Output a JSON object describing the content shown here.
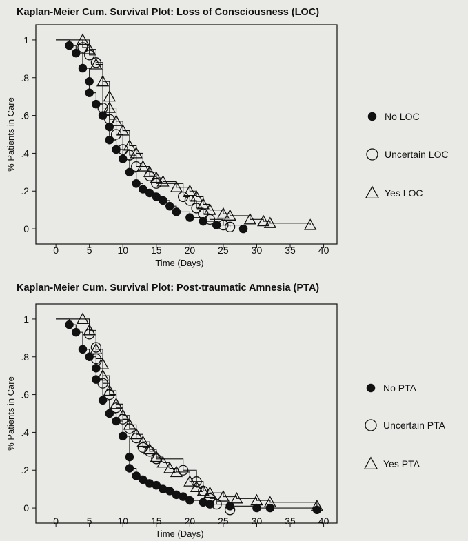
{
  "chart_data": [
    {
      "type": "scatter",
      "title": "Kaplan-Meier Cum. Survival Plot: Loss of Consciousness (LOC)",
      "xlabel": "Time (Days)",
      "ylabel": "% Patients in Care",
      "xlim": [
        -3,
        42
      ],
      "ylim": [
        -0.08,
        1.08
      ],
      "x_ticks": [
        0,
        5,
        10,
        15,
        20,
        25,
        30,
        35,
        40
      ],
      "y_ticks": [
        0,
        0.2,
        0.4,
        0.6,
        0.8,
        1
      ],
      "y_tick_labels": [
        "0",
        ".2",
        ".4",
        ".6",
        ".8",
        "1"
      ],
      "grid": false,
      "legend_position": "right",
      "series": [
        {
          "name": "No LOC",
          "marker": "filled-circle",
          "points": [
            [
              2,
              0.97
            ],
            [
              3,
              0.93
            ],
            [
              4,
              0.85
            ],
            [
              5,
              0.78
            ],
            [
              5,
              0.72
            ],
            [
              6,
              0.66
            ],
            [
              7,
              0.6
            ],
            [
              8,
              0.54
            ],
            [
              8,
              0.47
            ],
            [
              9,
              0.42
            ],
            [
              10,
              0.37
            ],
            [
              11,
              0.3
            ],
            [
              12,
              0.24
            ],
            [
              13,
              0.21
            ],
            [
              14,
              0.19
            ],
            [
              15,
              0.17
            ],
            [
              16,
              0.15
            ],
            [
              17,
              0.12
            ],
            [
              18,
              0.09
            ],
            [
              20,
              0.06
            ],
            [
              22,
              0.04
            ],
            [
              24,
              0.02
            ],
            [
              28,
              0
            ]
          ]
        },
        {
          "name": "Uncertain LOC",
          "marker": "open-circle",
          "points": [
            [
              4,
              0.96
            ],
            [
              5,
              0.92
            ],
            [
              6,
              0.88
            ],
            [
              7,
              0.64
            ],
            [
              8,
              0.58
            ],
            [
              9,
              0.5
            ],
            [
              10,
              0.42
            ],
            [
              11,
              0.39
            ],
            [
              12,
              0.33
            ],
            [
              14,
              0.28
            ],
            [
              15,
              0.24
            ],
            [
              19,
              0.17
            ],
            [
              20,
              0.15
            ],
            [
              21,
              0.11
            ],
            [
              22,
              0.08
            ],
            [
              23,
              0.05
            ],
            [
              25,
              0.02
            ],
            [
              26,
              0.01
            ]
          ]
        },
        {
          "name": "Yes LOC",
          "marker": "open-triangle",
          "points": [
            [
              4,
              1
            ],
            [
              5,
              0.95
            ],
            [
              6,
              0.87
            ],
            [
              7,
              0.78
            ],
            [
              8,
              0.7
            ],
            [
              8,
              0.64
            ],
            [
              9,
              0.57
            ],
            [
              10,
              0.52
            ],
            [
              11,
              0.44
            ],
            [
              12,
              0.4
            ],
            [
              13,
              0.33
            ],
            [
              14,
              0.3
            ],
            [
              15,
              0.27
            ],
            [
              16,
              0.25
            ],
            [
              18,
              0.22
            ],
            [
              20,
              0.2
            ],
            [
              21,
              0.17
            ],
            [
              22,
              0.13
            ],
            [
              23,
              0.1
            ],
            [
              25,
              0.08
            ],
            [
              26,
              0.07
            ],
            [
              29,
              0.05
            ],
            [
              31,
              0.04
            ],
            [
              32,
              0.03
            ],
            [
              38,
              0.02
            ]
          ]
        }
      ]
    },
    {
      "type": "scatter",
      "title": "Kaplan-Meier Cum. Survival Plot: Post-traumatic Amnesia (PTA)",
      "xlabel": "Time (Days)",
      "ylabel": "% Patients in Care",
      "xlim": [
        -3,
        42
      ],
      "ylim": [
        -0.08,
        1.08
      ],
      "x_ticks": [
        0,
        5,
        10,
        15,
        20,
        25,
        30,
        35,
        40
      ],
      "y_ticks": [
        0,
        0.2,
        0.4,
        0.6,
        0.8,
        1
      ],
      "y_tick_labels": [
        "0",
        ".2",
        ".4",
        ".6",
        ".8",
        "1"
      ],
      "grid": false,
      "legend_position": "right",
      "series": [
        {
          "name": "No PTA",
          "marker": "filled-circle",
          "points": [
            [
              2,
              0.97
            ],
            [
              3,
              0.93
            ],
            [
              4,
              0.84
            ],
            [
              5,
              0.8
            ],
            [
              6,
              0.74
            ],
            [
              6,
              0.68
            ],
            [
              7,
              0.57
            ],
            [
              8,
              0.5
            ],
            [
              9,
              0.46
            ],
            [
              10,
              0.38
            ],
            [
              11,
              0.27
            ],
            [
              11,
              0.21
            ],
            [
              12,
              0.17
            ],
            [
              13,
              0.15
            ],
            [
              14,
              0.13
            ],
            [
              15,
              0.12
            ],
            [
              16,
              0.1
            ],
            [
              17,
              0.09
            ],
            [
              18,
              0.07
            ],
            [
              19,
              0.06
            ],
            [
              20,
              0.04
            ],
            [
              22,
              0.03
            ],
            [
              23,
              0.02
            ],
            [
              26,
              0.01
            ],
            [
              30,
              0
            ],
            [
              32,
              0
            ],
            [
              39,
              -0.01
            ]
          ]
        },
        {
          "name": "Uncertain PTA",
          "marker": "open-circle",
          "points": [
            [
              5,
              0.92
            ],
            [
              6,
              0.85
            ],
            [
              6,
              0.79
            ],
            [
              7,
              0.66
            ],
            [
              8,
              0.6
            ],
            [
              9,
              0.53
            ],
            [
              10,
              0.47
            ],
            [
              11,
              0.42
            ],
            [
              12,
              0.37
            ],
            [
              13,
              0.32
            ],
            [
              14,
              0.3
            ],
            [
              15,
              0.26
            ],
            [
              19,
              0.2
            ],
            [
              21,
              0.14
            ],
            [
              22,
              0.09
            ],
            [
              23,
              0.05
            ],
            [
              24,
              0.02
            ],
            [
              26,
              -0.01
            ]
          ]
        },
        {
          "name": "Yes PTA",
          "marker": "open-triangle",
          "points": [
            [
              4,
              1
            ],
            [
              5,
              0.94
            ],
            [
              6,
              0.84
            ],
            [
              7,
              0.76
            ],
            [
              7,
              0.7
            ],
            [
              8,
              0.62
            ],
            [
              9,
              0.55
            ],
            [
              10,
              0.49
            ],
            [
              11,
              0.44
            ],
            [
              12,
              0.39
            ],
            [
              13,
              0.35
            ],
            [
              14,
              0.31
            ],
            [
              15,
              0.27
            ],
            [
              16,
              0.24
            ],
            [
              17,
              0.21
            ],
            [
              18,
              0.19
            ],
            [
              20,
              0.14
            ],
            [
              21,
              0.11
            ],
            [
              22,
              0.09
            ],
            [
              23,
              0.08
            ],
            [
              25,
              0.06
            ],
            [
              27,
              0.05
            ],
            [
              30,
              0.04
            ],
            [
              32,
              0.03
            ],
            [
              39,
              0.01
            ]
          ]
        }
      ]
    }
  ]
}
